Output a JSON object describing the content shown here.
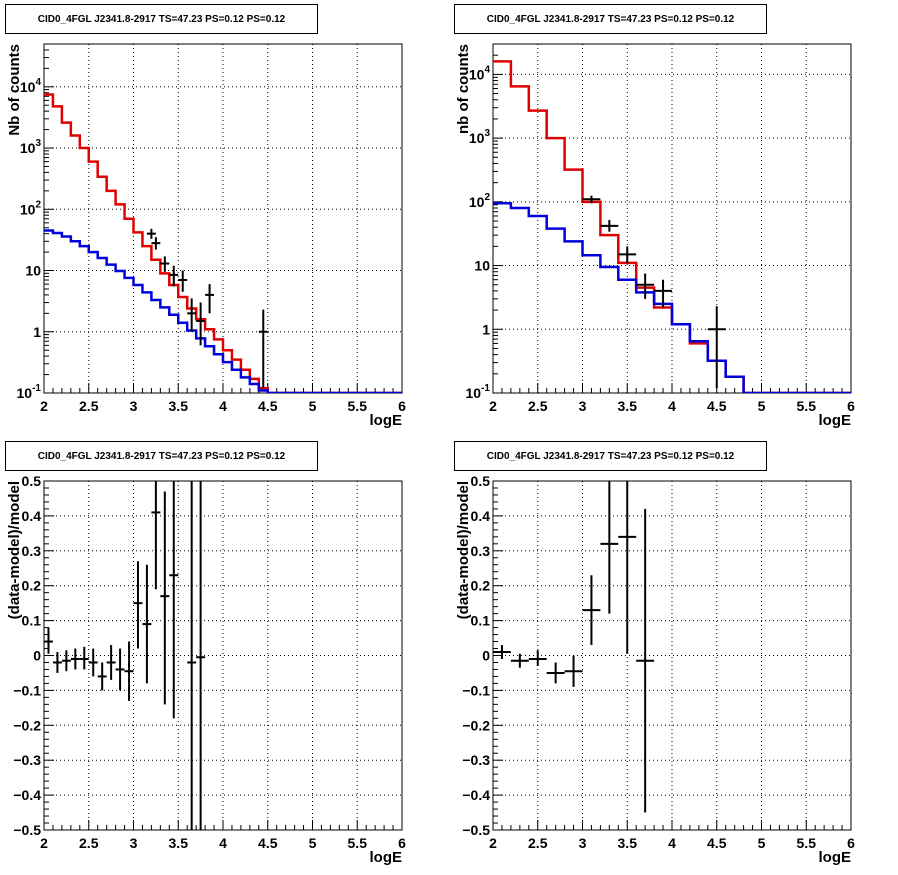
{
  "colors": {
    "data": "#000000",
    "model": "#e00000",
    "background": "#0000dd",
    "grid": "#000000"
  },
  "chart_data": [
    {
      "type": "line",
      "title": "CID0_4FGL J2341.8-2917 TS=47.23 PS=0.12 PS=0.12",
      "xlabel": "logE",
      "ylabel": "Nb of counts",
      "xlim": [
        2,
        6
      ],
      "ylim": [
        0.1,
        50000
      ],
      "log_y": true,
      "grid": true,
      "xticks": [
        "2",
        "2.5",
        "3",
        "3.5",
        "4",
        "4.5",
        "5",
        "5.5",
        "6"
      ],
      "yticks": [
        "10^-1",
        "1",
        "10",
        "10^2",
        "10^3",
        "10^4"
      ],
      "bin_edges": [
        2.0,
        2.1,
        2.2,
        2.3,
        2.4,
        2.5,
        2.6,
        2.7,
        2.8,
        2.9,
        3.0,
        3.1,
        3.2,
        3.3,
        3.4,
        3.5,
        3.6,
        3.7,
        3.8,
        3.9,
        4.0,
        4.1,
        4.2,
        4.3,
        4.4,
        4.5,
        4.6,
        4.7,
        4.8,
        4.9,
        5.0,
        5.1,
        5.2,
        5.3,
        5.4,
        5.5,
        5.6,
        5.7,
        5.8,
        5.9,
        6.0
      ],
      "series": [
        {
          "style": "step",
          "color": "#e00000",
          "values": [
            7500,
            4800,
            2600,
            1600,
            1000,
            600,
            340,
            200,
            120,
            70,
            42,
            25,
            15,
            9,
            5.8,
            3.7,
            2.4,
            1.6,
            1.1,
            0.75,
            0.5,
            0.35,
            0.24,
            0.17,
            0.12,
            0.1,
            0.1,
            0.1,
            0.1,
            0.1,
            0.1,
            0.1,
            0.1,
            0.1,
            0.1,
            0.1,
            0.1,
            0.1,
            0.1,
            0.1
          ]
        },
        {
          "style": "step",
          "color": "#0000dd",
          "values": [
            45,
            41,
            36,
            30,
            25,
            20,
            16,
            12.5,
            9.8,
            7.6,
            5.8,
            4.4,
            3.3,
            2.5,
            1.9,
            1.4,
            1.05,
            0.78,
            0.58,
            0.43,
            0.32,
            0.24,
            0.18,
            0.14,
            0.11,
            0.1,
            0.1,
            0.1,
            0.1,
            0.1,
            0.1,
            0.1,
            0.1,
            0.1,
            0.1,
            0.1,
            0.1,
            0.1,
            0.1,
            0.1
          ]
        },
        {
          "style": "points",
          "color": "#000000",
          "points": [
            {
              "x": 3.2,
              "y": 40,
              "xerr": 0.05,
              "ylo": 33,
              "yhi": 48
            },
            {
              "x": 3.25,
              "y": 28,
              "xerr": 0.05,
              "ylo": 22,
              "yhi": 35
            },
            {
              "x": 3.35,
              "y": 13,
              "xerr": 0.05,
              "ylo": 9.5,
              "yhi": 17
            },
            {
              "x": 3.45,
              "y": 8.5,
              "xerr": 0.05,
              "ylo": 5.5,
              "yhi": 12
            },
            {
              "x": 3.55,
              "y": 7,
              "xerr": 0.05,
              "ylo": 4.5,
              "yhi": 10
            },
            {
              "x": 3.65,
              "y": 2,
              "xerr": 0.05,
              "ylo": 1.0,
              "yhi": 3.5
            },
            {
              "x": 3.75,
              "y": 1.5,
              "xerr": 0.05,
              "ylo": 0.6,
              "yhi": 3
            },
            {
              "x": 3.85,
              "y": 4,
              "xerr": 0.05,
              "ylo": 2,
              "yhi": 6
            },
            {
              "x": 4.45,
              "y": 1,
              "xerr": 0.05,
              "ylo": 0.12,
              "yhi": 2.3
            }
          ]
        }
      ]
    },
    {
      "type": "line",
      "title": "CID0_4FGL J2341.8-2917 TS=47.23 PS=0.12 PS=0.12",
      "xlabel": "logE",
      "ylabel": "nb of counts",
      "xlim": [
        2,
        6
      ],
      "ylim": [
        0.1,
        30000
      ],
      "log_y": true,
      "grid": true,
      "xticks": [
        "2",
        "2.5",
        "3",
        "3.5",
        "4",
        "4.5",
        "5",
        "5.5",
        "6"
      ],
      "yticks": [
        "10^-1",
        "1",
        "10",
        "10^2",
        "10^3",
        "10^4"
      ],
      "bin_edges": [
        2.0,
        2.2,
        2.4,
        2.6,
        2.8,
        3.0,
        3.2,
        3.4,
        3.6,
        3.8,
        4.0,
        4.2,
        4.4,
        4.6,
        4.8,
        5.0,
        5.2,
        5.4,
        5.6,
        5.8,
        6.0
      ],
      "series": [
        {
          "style": "step",
          "color": "#e00000",
          "values": [
            16000,
            6500,
            2700,
            1000,
            320,
            100,
            30,
            11,
            4.5,
            2.2,
            1.2,
            0.6,
            0.32,
            0.18,
            0.1,
            0.1,
            0.1,
            0.1,
            0.1,
            0.1
          ]
        },
        {
          "style": "step",
          "color": "#0000dd",
          "values": [
            95,
            80,
            60,
            38,
            24,
            14.5,
            9.5,
            6,
            3.8,
            2.5,
            1.2,
            0.65,
            0.32,
            0.18,
            0.1,
            0.1,
            0.1,
            0.1,
            0.1,
            0.1
          ]
        },
        {
          "style": "points",
          "color": "#000000",
          "points": [
            {
              "x": 3.1,
              "y": 110,
              "xerr": 0.1,
              "ylo": 95,
              "yhi": 125
            },
            {
              "x": 3.3,
              "y": 42,
              "xerr": 0.1,
              "ylo": 34,
              "yhi": 52
            },
            {
              "x": 3.5,
              "y": 15,
              "xerr": 0.1,
              "ylo": 11,
              "yhi": 20
            },
            {
              "x": 3.7,
              "y": 5,
              "xerr": 0.1,
              "ylo": 3,
              "yhi": 7.5
            },
            {
              "x": 3.9,
              "y": 4,
              "xerr": 0.1,
              "ylo": 2.2,
              "yhi": 6
            },
            {
              "x": 4.5,
              "y": 1,
              "xerr": 0.1,
              "ylo": 0.12,
              "yhi": 2.3
            }
          ]
        }
      ]
    },
    {
      "type": "scatter",
      "title": "CID0_4FGL J2341.8-2917 TS=47.23 PS=0.12 PS=0.12",
      "xlabel": "logE",
      "ylabel": "(data-model)/model",
      "xlim": [
        2,
        6
      ],
      "ylim": [
        -0.5,
        0.5
      ],
      "grid": true,
      "xticks": [
        "2",
        "2.5",
        "3",
        "3.5",
        "4",
        "4.5",
        "5",
        "5.5",
        "6"
      ],
      "yticks": [
        "−0.5",
        "−0.4",
        "−0.3",
        "−0.2",
        "−0.1",
        "0",
        "0.1",
        "0.2",
        "0.3",
        "0.4",
        "0.5"
      ],
      "series": [
        {
          "style": "points",
          "color": "#000000",
          "points": [
            {
              "x": 2.05,
              "y": 0.04,
              "xerr": 0.05,
              "ylo": 0.005,
              "yhi": 0.08
            },
            {
              "x": 2.15,
              "y": -0.02,
              "xerr": 0.05,
              "ylo": -0.05,
              "yhi": 0.01
            },
            {
              "x": 2.25,
              "y": -0.015,
              "xerr": 0.05,
              "ylo": -0.045,
              "yhi": 0.015
            },
            {
              "x": 2.35,
              "y": -0.01,
              "xerr": 0.05,
              "ylo": -0.04,
              "yhi": 0.02
            },
            {
              "x": 2.45,
              "y": -0.01,
              "xerr": 0.05,
              "ylo": -0.04,
              "yhi": 0.025
            },
            {
              "x": 2.55,
              "y": -0.02,
              "xerr": 0.05,
              "ylo": -0.06,
              "yhi": 0.02
            },
            {
              "x": 2.65,
              "y": -0.06,
              "xerr": 0.05,
              "ylo": -0.1,
              "yhi": -0.02
            },
            {
              "x": 2.75,
              "y": -0.02,
              "xerr": 0.05,
              "ylo": -0.07,
              "yhi": 0.03
            },
            {
              "x": 2.85,
              "y": -0.04,
              "xerr": 0.05,
              "ylo": -0.1,
              "yhi": 0.02
            },
            {
              "x": 2.95,
              "y": -0.045,
              "xerr": 0.05,
              "ylo": -0.13,
              "yhi": 0.04
            },
            {
              "x": 3.05,
              "y": 0.15,
              "xerr": 0.05,
              "ylo": 0.02,
              "yhi": 0.27
            },
            {
              "x": 3.15,
              "y": 0.09,
              "xerr": 0.05,
              "ylo": -0.08,
              "yhi": 0.26
            },
            {
              "x": 3.25,
              "y": 0.41,
              "xerr": 0.05,
              "ylo": 0.19,
              "yhi": 0.5
            },
            {
              "x": 3.35,
              "y": 0.17,
              "xerr": 0.05,
              "ylo": -0.14,
              "yhi": 0.47
            },
            {
              "x": 3.45,
              "y": 0.23,
              "xerr": 0.05,
              "ylo": -0.18,
              "yhi": 0.5
            },
            {
              "x": 3.65,
              "y": -0.02,
              "xerr": 0.05,
              "ylo": -0.5,
              "yhi": 0.5
            },
            {
              "x": 3.75,
              "y": -0.005,
              "xerr": 0.05,
              "ylo": -0.5,
              "yhi": 0.5
            }
          ]
        }
      ]
    },
    {
      "type": "scatter",
      "title": "CID0_4FGL J2341.8-2917 TS=47.23 PS=0.12 PS=0.12",
      "xlabel": "logE",
      "ylabel": "(data-model)/model",
      "xlim": [
        2,
        6
      ],
      "ylim": [
        -0.5,
        0.5
      ],
      "grid": true,
      "xticks": [
        "2",
        "2.5",
        "3",
        "3.5",
        "4",
        "4.5",
        "5",
        "5.5",
        "6"
      ],
      "yticks": [
        "−0.5",
        "−0.4",
        "−0.3",
        "−0.2",
        "−0.1",
        "0",
        "0.1",
        "0.2",
        "0.3",
        "0.4",
        "0.5"
      ],
      "series": [
        {
          "style": "points",
          "color": "#000000",
          "points": [
            {
              "x": 2.1,
              "y": 0.01,
              "xerr": 0.1,
              "ylo": -0.01,
              "yhi": 0.03
            },
            {
              "x": 2.3,
              "y": -0.015,
              "xerr": 0.1,
              "ylo": -0.035,
              "yhi": 0.005
            },
            {
              "x": 2.5,
              "y": -0.01,
              "xerr": 0.1,
              "ylo": -0.03,
              "yhi": 0.015
            },
            {
              "x": 2.7,
              "y": -0.05,
              "xerr": 0.1,
              "ylo": -0.08,
              "yhi": -0.02
            },
            {
              "x": 2.9,
              "y": -0.045,
              "xerr": 0.1,
              "ylo": -0.09,
              "yhi": 0.0
            },
            {
              "x": 3.1,
              "y": 0.13,
              "xerr": 0.1,
              "ylo": 0.03,
              "yhi": 0.23
            },
            {
              "x": 3.3,
              "y": 0.32,
              "xerr": 0.1,
              "ylo": 0.12,
              "yhi": 0.5
            },
            {
              "x": 3.5,
              "y": 0.34,
              "xerr": 0.1,
              "ylo": 0.005,
              "yhi": 0.5
            },
            {
              "x": 3.7,
              "y": -0.015,
              "xerr": 0.1,
              "ylo": -0.45,
              "yhi": 0.42
            }
          ]
        }
      ]
    }
  ]
}
